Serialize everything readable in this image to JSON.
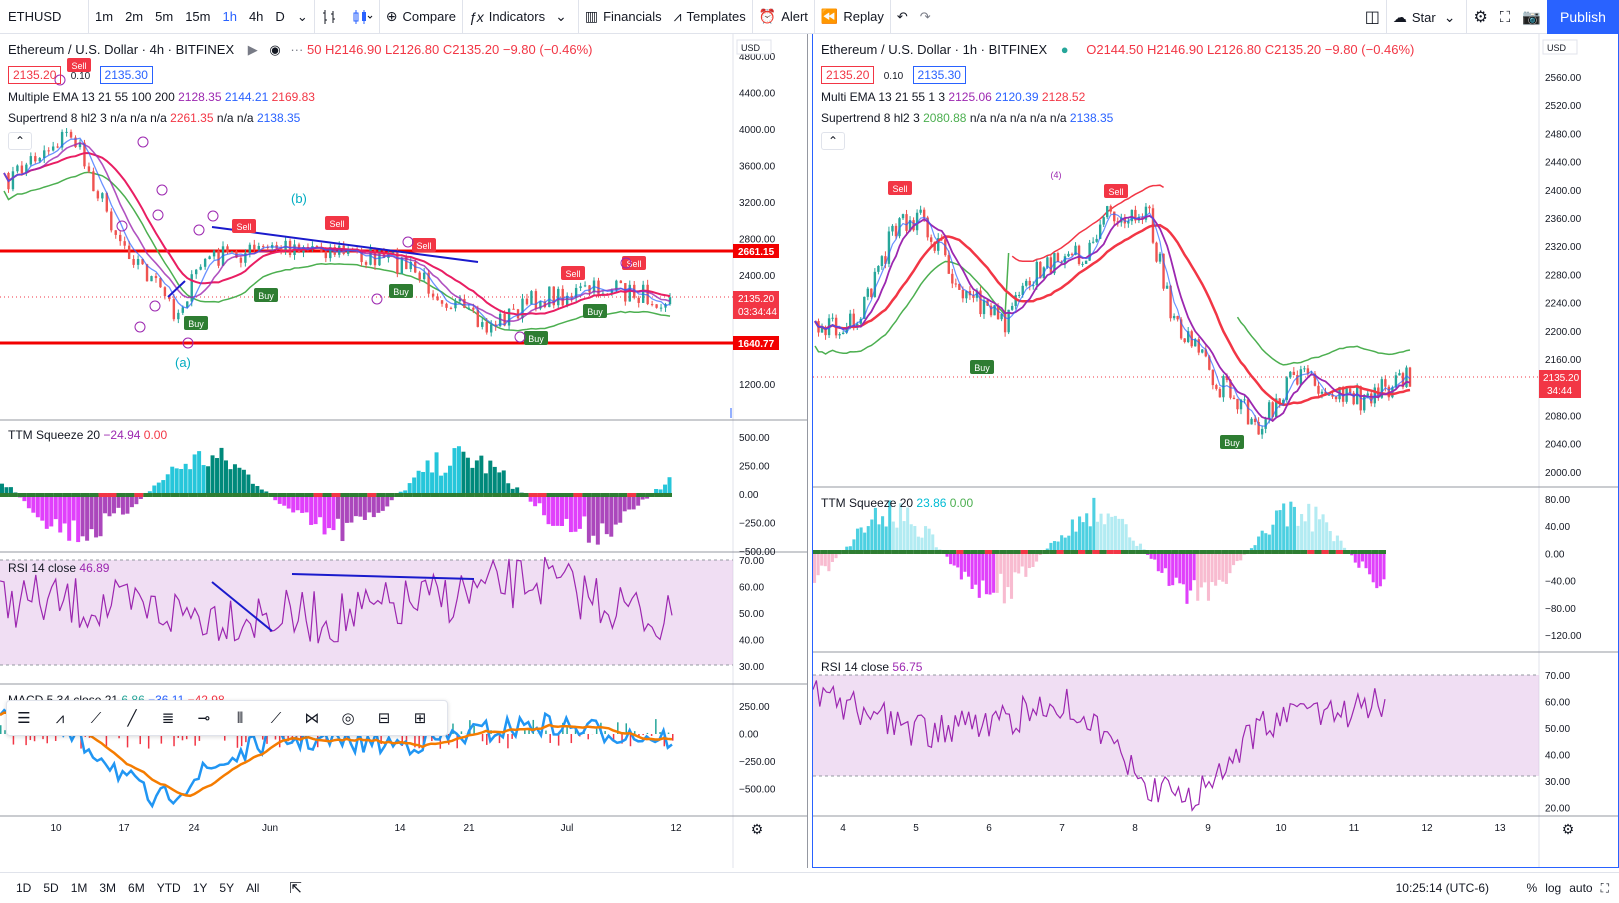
{
  "toolbar": {
    "symbol": "ETHUSD",
    "intervals": [
      "1m",
      "2m",
      "5m",
      "15m",
      "1h",
      "4h",
      "D"
    ],
    "active_interval": "1h",
    "compare": "Compare",
    "indicators": "Indicators",
    "financials": "Financials",
    "templates": "Templates",
    "alert": "Alert",
    "replay": "Replay",
    "star": "Star",
    "publish": "Publish"
  },
  "left": {
    "title": "Ethereum / U.S. Dollar · 4h · BITFINEX",
    "ohlc": "50 H2146.90 L2126.80 C2135.20 −9.80 (−0.46%)",
    "bid": "2135.20",
    "spread": "0.10",
    "ask": "2135.30",
    "ema_label": "Multiple EMA 13 21 55 100 200",
    "ema_values": [
      "2128.35",
      "2144.21",
      "2169.83"
    ],
    "st_label": "Supertrend 8 hl2 3",
    "st_values": "n/a n/a n/a",
    "st_value_red": "2261.35",
    "st_values2": "n/a n/a",
    "st_value_blue": "2138.35",
    "currency": "USD",
    "price_ticks": [
      "4800.00",
      "4400.00",
      "4000.00",
      "3600.00",
      "3200.00",
      "2800.00",
      "2400.00",
      "1600.00",
      "1200.00"
    ],
    "line_upper": "2661.15",
    "line_lower": "1640.77",
    "last_price": "2135.20",
    "countdown": "03:34:44",
    "ttm_label": "TTM Squeeze 20",
    "ttm_v1": "−24.94",
    "ttm_v2": "0.00",
    "ttm_ticks": [
      "500.00",
      "250.00",
      "0.00",
      "−250.00",
      "−500.00"
    ],
    "rsi_label": "RSI 14 close",
    "rsi_value": "46.89",
    "rsi_ticks": [
      "70.00",
      "60.00",
      "50.00",
      "40.00",
      "30.00"
    ],
    "macd_label": "MACD 5 34 close 21",
    "macd_v1": "6.86",
    "macd_v2": "−36.11",
    "macd_v3": "−42.98",
    "macd_ticks": [
      "250.00",
      "0.00",
      "−250.00",
      "−500.00"
    ],
    "time_ticks": [
      "10",
      "17",
      "24",
      "Jun",
      "14",
      "21",
      "Jul",
      "12"
    ],
    "labels": {
      "sell": "Sell",
      "buy": "Buy",
      "wave_a": "(a)",
      "wave_b": "(b)"
    }
  },
  "right": {
    "title": "Ethereum / U.S. Dollar · 1h · BITFINEX",
    "ohlc": "O2144.50 H2146.90 L2126.80 C2135.20 −9.80 (−0.46%)",
    "bid": "2135.20",
    "spread": "0.10",
    "ask": "2135.30",
    "ema_label": "Multi EMA 13 21 55 1 3",
    "ema_values": [
      "2125.06",
      "2120.39",
      "2128.52"
    ],
    "st_label": "Supertrend 8 hl2 3",
    "st_value_green": "2080.88",
    "st_values": "n/a n/a n/a n/a n/a",
    "st_value_blue": "2138.35",
    "currency": "USD",
    "price_ticks": [
      "2560.00",
      "2520.00",
      "2480.00",
      "2440.00",
      "2400.00",
      "2360.00",
      "2320.00",
      "2280.00",
      "2240.00",
      "2200.00",
      "2160.00",
      "2120.00",
      "2080.00",
      "2040.00",
      "2000.00"
    ],
    "last_price": "2135.20",
    "countdown": "34:44",
    "ttm_label": "TTM Squeeze 20",
    "ttm_v1": "23.86",
    "ttm_v2": "0.00",
    "ttm_ticks": [
      "80.00",
      "40.00",
      "0.00",
      "−40.00",
      "−80.00",
      "−120.00"
    ],
    "rsi_label": "RSI 14 close",
    "rsi_value": "56.75",
    "rsi_ticks": [
      "70.00",
      "60.00",
      "50.00",
      "40.00",
      "30.00",
      "20.00"
    ],
    "time_ticks": [
      "4",
      "5",
      "6",
      "7",
      "8",
      "9",
      "10",
      "11",
      "12",
      "13"
    ],
    "labels": {
      "sell": "Sell",
      "buy": "Buy",
      "wave4": "(4)"
    }
  },
  "bottom": {
    "ranges": [
      "1D",
      "5D",
      "1M",
      "3M",
      "6M",
      "YTD",
      "1Y",
      "5Y",
      "All"
    ],
    "clock": "10:25:14 (UTC-6)",
    "percent": "%",
    "log": "log",
    "auto": "auto"
  },
  "colors": {
    "accent": "#2962ff",
    "red": "#f23645",
    "green": "#4caf50",
    "purple": "#9c27b0"
  }
}
